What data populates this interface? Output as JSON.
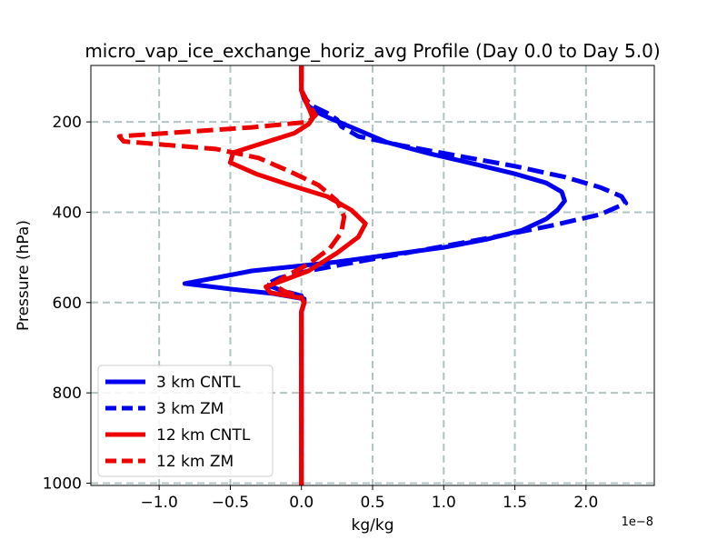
{
  "chart_data": {
    "type": "line",
    "title": "micro_vap_ice_exchange_horiz_avg Profile (Day 0.0 to Day 5.0)",
    "xlabel": "kg/kg",
    "ylabel": "Pressure (hPa)",
    "x_offset_label": "1e−8",
    "xlim": [
      -1.48,
      2.48
    ],
    "ylim": [
      1005,
      75
    ],
    "y_inverted": true,
    "grid": true,
    "legend_position": "lower-left",
    "x_ticks": [
      -1.0,
      -0.5,
      0.0,
      0.5,
      1.0,
      1.5,
      2.0
    ],
    "x_tick_labels": [
      "−1.0",
      "−0.5",
      "0.0",
      "0.5",
      "1.0",
      "1.5",
      "2.0"
    ],
    "y_ticks": [
      200,
      400,
      600,
      800,
      1000
    ],
    "y_tick_labels": [
      "200",
      "400",
      "600",
      "800",
      "1000"
    ],
    "series": [
      {
        "name": "3 km CNTL",
        "color": "#0000ee",
        "style": "solid",
        "points": [
          [
            0.0,
            75
          ],
          [
            0.0,
            100
          ],
          [
            0.0,
            130
          ],
          [
            0.02,
            150
          ],
          [
            0.05,
            165
          ],
          [
            0.12,
            180
          ],
          [
            0.2,
            192
          ],
          [
            0.3,
            205
          ],
          [
            0.45,
            225
          ],
          [
            0.6,
            245
          ],
          [
            0.9,
            270
          ],
          [
            1.2,
            292
          ],
          [
            1.5,
            315
          ],
          [
            1.72,
            335
          ],
          [
            1.83,
            355
          ],
          [
            1.85,
            375
          ],
          [
            1.8,
            395
          ],
          [
            1.72,
            415
          ],
          [
            1.55,
            440
          ],
          [
            1.3,
            460
          ],
          [
            1.0,
            478
          ],
          [
            0.6,
            495
          ],
          [
            0.25,
            510
          ],
          [
            -0.05,
            520
          ],
          [
            -0.35,
            530
          ],
          [
            -0.6,
            545
          ],
          [
            -0.82,
            558
          ],
          [
            -0.5,
            570
          ],
          [
            -0.2,
            580
          ],
          [
            0.02,
            592
          ],
          [
            0.02,
            600
          ],
          [
            0.0,
            620
          ],
          [
            0.0,
            700
          ],
          [
            0.0,
            800
          ],
          [
            0.0,
            900
          ],
          [
            0.0,
            1005
          ]
        ]
      },
      {
        "name": "3 km ZM",
        "color": "#0000ee",
        "style": "dashed",
        "points": [
          [
            0.0,
            75
          ],
          [
            0.0,
            100
          ],
          [
            0.0,
            130
          ],
          [
            0.03,
            150
          ],
          [
            0.08,
            165
          ],
          [
            0.18,
            180
          ],
          [
            0.25,
            195
          ],
          [
            0.28,
            210
          ],
          [
            0.4,
            232
          ],
          [
            0.7,
            252
          ],
          [
            1.1,
            275
          ],
          [
            1.5,
            298
          ],
          [
            1.85,
            322
          ],
          [
            2.1,
            345
          ],
          [
            2.25,
            365
          ],
          [
            2.28,
            380
          ],
          [
            2.1,
            405
          ],
          [
            1.75,
            430
          ],
          [
            1.35,
            455
          ],
          [
            0.95,
            478
          ],
          [
            0.6,
            498
          ],
          [
            0.3,
            515
          ],
          [
            0.05,
            530
          ],
          [
            -0.15,
            545
          ],
          [
            -0.25,
            560
          ],
          [
            -0.15,
            572
          ],
          [
            0.0,
            585
          ],
          [
            0.02,
            600
          ],
          [
            0.0,
            620
          ],
          [
            0.0,
            700
          ],
          [
            0.0,
            800
          ],
          [
            0.0,
            900
          ],
          [
            0.0,
            1005
          ]
        ]
      },
      {
        "name": "12 km CNTL",
        "color": "#ee0000",
        "style": "solid",
        "points": [
          [
            0.0,
            75
          ],
          [
            0.0,
            100
          ],
          [
            0.0,
            130
          ],
          [
            0.03,
            155
          ],
          [
            0.06,
            175
          ],
          [
            0.08,
            192
          ],
          [
            0.05,
            205
          ],
          [
            -0.05,
            225
          ],
          [
            -0.3,
            250
          ],
          [
            -0.48,
            268
          ],
          [
            -0.5,
            290
          ],
          [
            -0.32,
            315
          ],
          [
            -0.08,
            340
          ],
          [
            0.18,
            365
          ],
          [
            0.35,
            395
          ],
          [
            0.45,
            425
          ],
          [
            0.4,
            455
          ],
          [
            0.25,
            490
          ],
          [
            0.05,
            530
          ],
          [
            -0.12,
            550
          ],
          [
            -0.25,
            565
          ],
          [
            -0.22,
            578
          ],
          [
            0.0,
            590
          ],
          [
            0.02,
            600
          ],
          [
            0.0,
            620
          ],
          [
            0.0,
            700
          ],
          [
            0.0,
            800
          ],
          [
            0.0,
            900
          ],
          [
            0.0,
            1005
          ]
        ]
      },
      {
        "name": "12 km ZM",
        "color": "#ee0000",
        "style": "dashed",
        "points": [
          [
            0.0,
            75
          ],
          [
            0.0,
            100
          ],
          [
            0.0,
            130
          ],
          [
            0.05,
            160
          ],
          [
            0.1,
            185
          ],
          [
            0.05,
            200
          ],
          [
            -0.35,
            212
          ],
          [
            -1.28,
            232
          ],
          [
            -1.25,
            243
          ],
          [
            -0.6,
            260
          ],
          [
            -0.3,
            280
          ],
          [
            -0.08,
            310
          ],
          [
            0.12,
            340
          ],
          [
            0.25,
            375
          ],
          [
            0.3,
            410
          ],
          [
            0.28,
            445
          ],
          [
            0.2,
            480
          ],
          [
            0.05,
            515
          ],
          [
            -0.1,
            540
          ],
          [
            -0.2,
            560
          ],
          [
            -0.12,
            575
          ],
          [
            0.0,
            588
          ],
          [
            0.02,
            600
          ],
          [
            0.0,
            620
          ],
          [
            0.0,
            700
          ],
          [
            0.0,
            800
          ],
          [
            0.0,
            900
          ],
          [
            0.0,
            1005
          ]
        ]
      }
    ]
  }
}
